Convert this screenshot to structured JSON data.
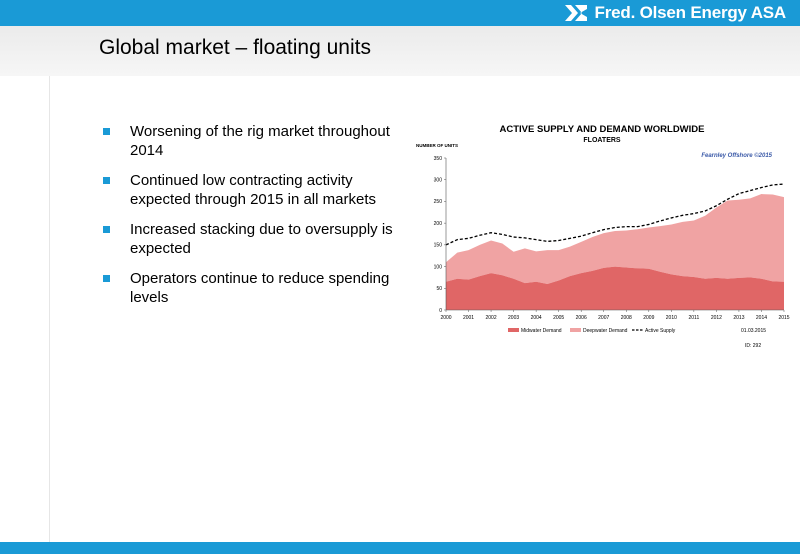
{
  "brand": {
    "name": "Fred. Olsen Energy ASA",
    "logo_icon": "fred-olsen-logo-icon",
    "accent": "#1a9ad6"
  },
  "slide": {
    "title": "Global market – floating units",
    "bullets": [
      {
        "text": "Worsening of the rig market throughout 2014"
      },
      {
        "text": "Continued low contracting activity expected through 2015 in all markets"
      },
      {
        "text": "Increased stacking due to oversupply is expected"
      },
      {
        "text": "Operators continue to reduce spending levels"
      }
    ]
  },
  "chart_data": {
    "type": "area",
    "title": "ACTIVE SUPPLY AND DEMAND WORLDWIDE",
    "subtitle": "FLOATERS",
    "ylabel": "NUMBER OF UNITS",
    "watermark": "Fearnley Offshore ©2015",
    "date_note": "01.03.2015",
    "id_note": "ID: 292",
    "ylim": [
      0,
      350
    ],
    "yticks": [
      0,
      50,
      100,
      150,
      200,
      250,
      300,
      350
    ],
    "x_ticks": [
      "2000",
      "2001",
      "2002",
      "2003",
      "2004",
      "2005",
      "2006",
      "2007",
      "2008",
      "2009",
      "2010",
      "2011",
      "2012",
      "2013",
      "2014",
      "2015"
    ],
    "x": [
      2000,
      2000.5,
      2001,
      2001.5,
      2002,
      2002.5,
      2003,
      2003.5,
      2004,
      2004.5,
      2005,
      2005.5,
      2006,
      2006.5,
      2007,
      2007.5,
      2008,
      2008.5,
      2009,
      2009.5,
      2010,
      2010.5,
      2011,
      2011.5,
      2012,
      2012.5,
      2013,
      2013.5,
      2014,
      2014.5,
      2015
    ],
    "series": [
      {
        "name": "Midwater Demand",
        "kind": "area",
        "color": "#e06666",
        "values": [
          65,
          72,
          70,
          78,
          85,
          80,
          72,
          62,
          65,
          60,
          68,
          78,
          85,
          90,
          97,
          100,
          98,
          96,
          95,
          88,
          82,
          78,
          76,
          72,
          74,
          72,
          74,
          75,
          72,
          66,
          65
        ]
      },
      {
        "name": "Deepwater Demand",
        "kind": "area",
        "color": "#f0a3a3",
        "values": [
          45,
          60,
          68,
          72,
          75,
          73,
          62,
          80,
          70,
          78,
          70,
          68,
          72,
          78,
          80,
          82,
          85,
          90,
          95,
          105,
          115,
          125,
          130,
          145,
          162,
          180,
          180,
          182,
          195,
          200,
          195
        ]
      },
      {
        "name": "Active Supply",
        "kind": "line",
        "color": "#000000",
        "dash": true,
        "values": [
          150,
          162,
          165,
          172,
          178,
          174,
          168,
          166,
          162,
          158,
          160,
          165,
          170,
          178,
          185,
          190,
          192,
          192,
          197,
          205,
          212,
          218,
          222,
          228,
          240,
          255,
          268,
          275,
          282,
          288,
          290
        ]
      }
    ],
    "legend_position": "bottom",
    "grid": false
  }
}
